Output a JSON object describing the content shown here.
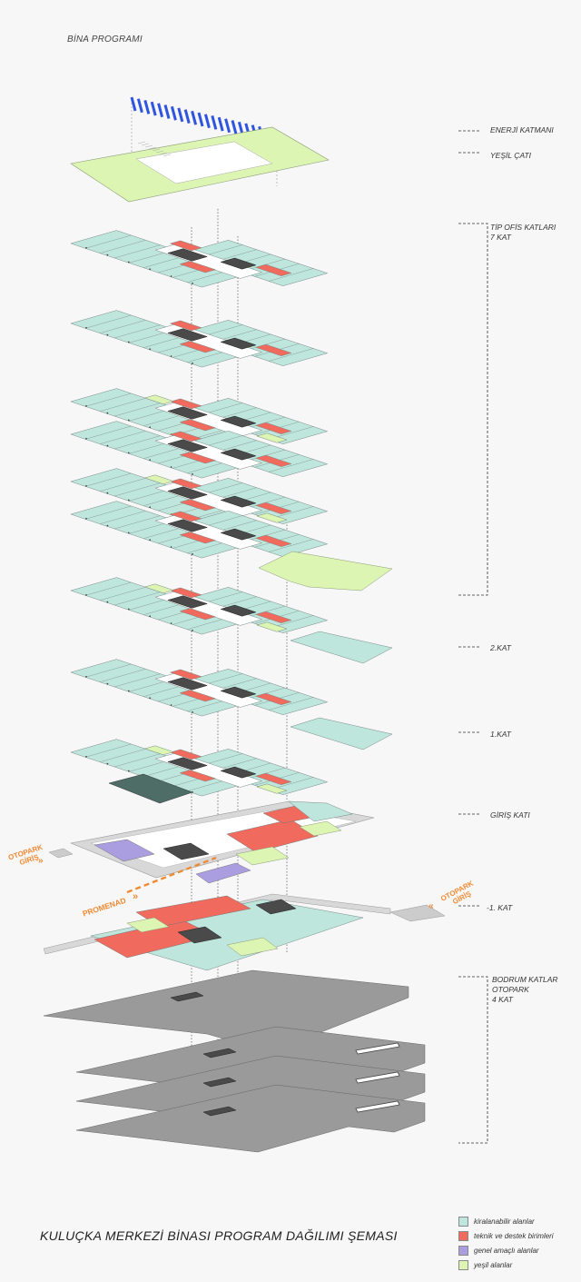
{
  "header": {
    "title": "BİNA PROGRAMI"
  },
  "footer": {
    "title": "KULUÇKA MERKEZİ BİNASI PROGRAM DAĞILIMI ŞEMASI"
  },
  "levels": {
    "energy": "ENERJİ KATMANI",
    "green_roof": "YEŞİL ÇATI",
    "office_line1": "TİP OFİS KATLARI",
    "office_line2": "7 KAT",
    "floor2": "2.KAT",
    "floor1": "1.KAT",
    "ground": "GİRİŞ KATI",
    "minus1": "-1. KAT",
    "basement_line1": "BODRUM KATLAR",
    "basement_line2": "OTOPARK",
    "basement_line3": "4 KAT"
  },
  "annotations": {
    "parking_left_1": "OTOPARK",
    "parking_left_2": "GİRİŞ",
    "parking_right_1": "OTOPARK",
    "parking_right_2": "GİRİŞ",
    "promenade": "PROMENAD"
  },
  "legend": [
    {
      "label": "kiralanabilir alanlar",
      "color": "#bfe6dd"
    },
    {
      "label": "teknik ve destek birimleri",
      "color": "#f06a5e"
    },
    {
      "label": "genel amaçlı alanlar",
      "color": "#ab9ee0"
    },
    {
      "label": "yeşil alanlar",
      "color": "#dcf5b2"
    }
  ],
  "colors": {
    "rentable": "#bfe6dd",
    "technical": "#f06a5e",
    "general": "#ab9ee0",
    "green": "#dcf5b2",
    "core": "#4a4a4a",
    "basement": "#9a9a9a",
    "energy": "#2f55e0",
    "accent": "#f08a33"
  }
}
